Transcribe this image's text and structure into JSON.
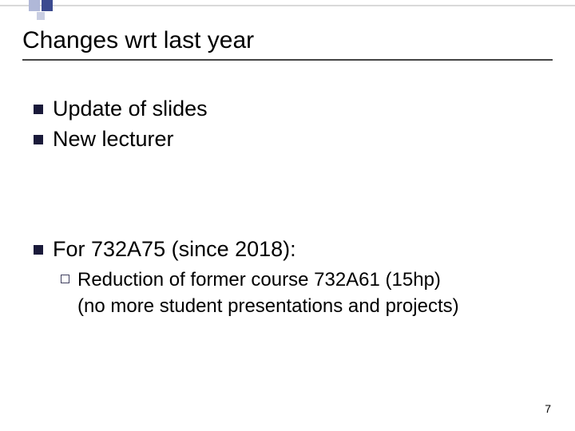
{
  "title": "Changes wrt last year",
  "bullets": {
    "b1": "Update of slides",
    "b2": "New lecturer",
    "b3": "For 732A75 (since 2018):"
  },
  "sub": {
    "line1": "Reduction of former course 732A61 (15hp)",
    "line2": "(no more student presentations and projects)"
  },
  "page_number": "7",
  "colors": {
    "bullet_fill": "#1a1a3a",
    "deco_dark": "#3b4a8f",
    "deco_mid": "#b0b8d8",
    "deco_light": "#c9cee2",
    "underline": "#444444",
    "text": "#000000",
    "background": "#ffffff"
  }
}
